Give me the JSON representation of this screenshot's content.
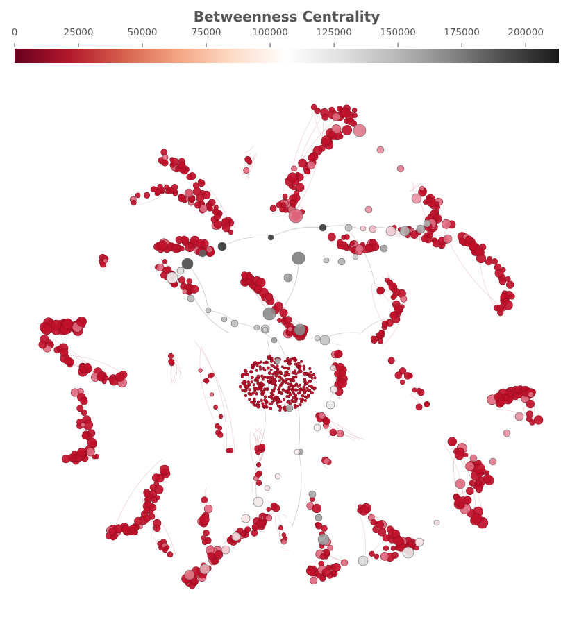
{
  "colorbar": {
    "title": "Betweenness Centrality",
    "min": 0,
    "max": 213000,
    "ticks": [
      "0",
      "25000",
      "50000",
      "75000",
      "100000",
      "125000",
      "150000",
      "175000",
      "200000"
    ],
    "tick_values": [
      0,
      25000,
      50000,
      75000,
      100000,
      125000,
      150000,
      175000,
      200000
    ],
    "colormap": "RdGy (reversed)",
    "color_stops": [
      "#67001f",
      "#b2182b",
      "#d6604d",
      "#f4a582",
      "#fddbc7",
      "#ffffff",
      "#e0e0e0",
      "#bababa",
      "#878787",
      "#4d4d4d",
      "#1a1a1a"
    ]
  },
  "graph": {
    "node_base_color": "#c0102a",
    "node_edge_color": "#8a0e1e",
    "edge_color": "#d9a0a8"
  }
}
